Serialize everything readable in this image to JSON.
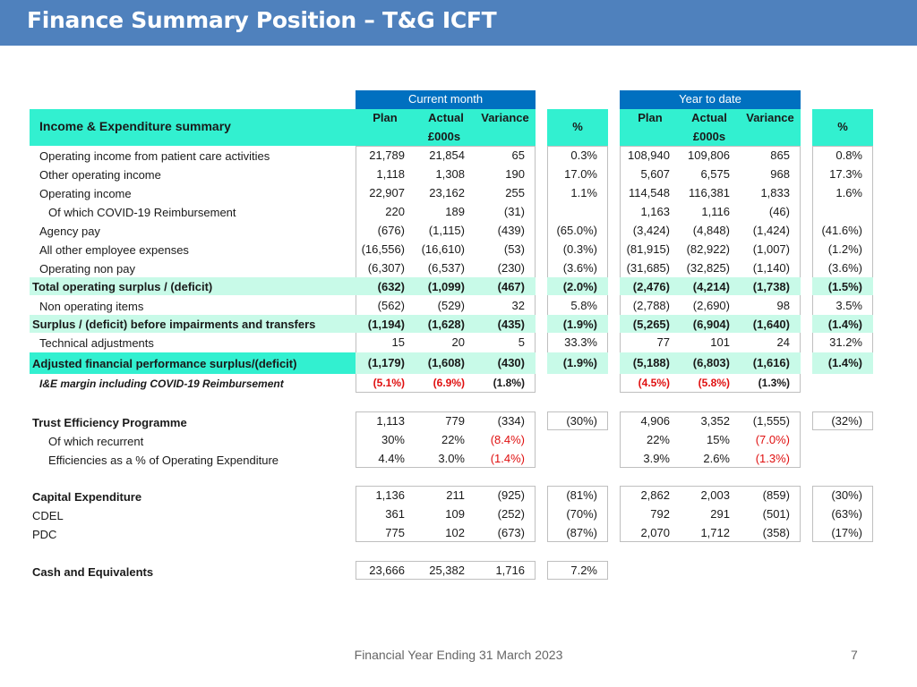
{
  "slide": {
    "title": "Finance Summary Position – T&G ICFT",
    "footer": "Financial Year Ending 31 March 2023",
    "page_number": "7"
  },
  "headers": {
    "current_month": "Current month",
    "year_to_date": "Year to date",
    "plan": "Plan",
    "actual": "Actual",
    "variance": "Variance",
    "percent": "%",
    "units": "£000s",
    "ie_summary": "Income & Expenditure summary"
  },
  "ie_rows": [
    {
      "label": "Operating income from patient care activities",
      "cm": [
        "21,789",
        "21,854",
        "65"
      ],
      "cm_pct": "0.3%",
      "ytd": [
        "108,940",
        "109,806",
        "865"
      ],
      "ytd_pct": "0.8%"
    },
    {
      "label": "Other operating income",
      "cm": [
        "1,118",
        "1,308",
        "190"
      ],
      "cm_pct": "17.0%",
      "ytd": [
        "5,607",
        "6,575",
        "968"
      ],
      "ytd_pct": "17.3%"
    },
    {
      "label": "Operating income",
      "cm": [
        "22,907",
        "23,162",
        "255"
      ],
      "cm_pct": "1.1%",
      "ytd": [
        "114,548",
        "116,381",
        "1,833"
      ],
      "ytd_pct": "1.6%"
    },
    {
      "label": "Of which COVID-19 Reimbursement",
      "cm": [
        "220",
        "189",
        "(31)"
      ],
      "cm_pct": "",
      "ytd": [
        "1,163",
        "1,116",
        "(46)"
      ],
      "ytd_pct": ""
    },
    {
      "label": "Agency pay",
      "cm": [
        "(676)",
        "(1,115)",
        "(439)"
      ],
      "cm_pct": "(65.0%)",
      "ytd": [
        "(3,424)",
        "(4,848)",
        "(1,424)"
      ],
      "ytd_pct": "(41.6%)"
    },
    {
      "label": "All other employee expenses",
      "cm": [
        "(16,556)",
        "(16,610)",
        "(53)"
      ],
      "cm_pct": "(0.3%)",
      "ytd": [
        "(81,915)",
        "(82,922)",
        "(1,007)"
      ],
      "ytd_pct": "(1.2%)"
    },
    {
      "label": "Operating non pay",
      "cm": [
        "(6,307)",
        "(6,537)",
        "(230)"
      ],
      "cm_pct": "(3.6%)",
      "ytd": [
        "(31,685)",
        "(32,825)",
        "(1,140)"
      ],
      "ytd_pct": "(3.6%)"
    },
    {
      "label": "Total operating surplus / (deficit)",
      "cm": [
        "(632)",
        "(1,099)",
        "(467)"
      ],
      "cm_pct": "(2.0%)",
      "ytd": [
        "(2,476)",
        "(4,214)",
        "(1,738)"
      ],
      "ytd_pct": "(1.5%)"
    },
    {
      "label": "Non operating items",
      "cm": [
        "(562)",
        "(529)",
        "32"
      ],
      "cm_pct": "5.8%",
      "ytd": [
        "(2,788)",
        "(2,690)",
        "98"
      ],
      "ytd_pct": "3.5%"
    },
    {
      "label": "Surplus / (deficit) before impairments and transfers",
      "cm": [
        "(1,194)",
        "(1,628)",
        "(435)"
      ],
      "cm_pct": "(1.9%)",
      "ytd": [
        "(5,265)",
        "(6,904)",
        "(1,640)"
      ],
      "ytd_pct": "(1.4%)"
    },
    {
      "label": "Technical adjustments",
      "cm": [
        "15",
        "20",
        "5"
      ],
      "cm_pct": "33.3%",
      "ytd": [
        "77",
        "101",
        "24"
      ],
      "ytd_pct": "31.2%"
    },
    {
      "label": "Adjusted financial performance surplus/(deficit)",
      "cm": [
        "(1,179)",
        "(1,608)",
        "(430)"
      ],
      "cm_pct": "(1.9%)",
      "ytd": [
        "(5,188)",
        "(6,803)",
        "(1,616)"
      ],
      "ytd_pct": "(1.4%)"
    },
    {
      "label": "I&E margin including COVID-19 Reimbursement",
      "cm": [
        "(5.1%)",
        "(6.9%)",
        "(1.8%)"
      ],
      "cm_pct": "",
      "ytd": [
        "(4.5%)",
        "(5.8%)",
        "(1.3%)"
      ],
      "ytd_pct": ""
    }
  ],
  "efficiency_rows": [
    {
      "label": "Trust Efficiency Programme",
      "cm": [
        "1,113",
        "779",
        "(334)"
      ],
      "cm_pct": "(30%)",
      "ytd": [
        "4,906",
        "3,352",
        "(1,555)"
      ],
      "ytd_pct": "(32%)"
    },
    {
      "label": "Of which recurrent",
      "cm": [
        "30%",
        "22%",
        "(8.4%)"
      ],
      "cm_pct": "",
      "ytd": [
        "22%",
        "15%",
        "(7.0%)"
      ],
      "ytd_pct": ""
    },
    {
      "label": "Efficiencies as a % of Operating Expenditure",
      "cm": [
        "4.4%",
        "3.0%",
        "(1.4%)"
      ],
      "cm_pct": "",
      "ytd": [
        "3.9%",
        "2.6%",
        "(1.3%)"
      ],
      "ytd_pct": ""
    }
  ],
  "capital_rows": [
    {
      "label": "Capital Expenditure",
      "cm": [
        "1,136",
        "211",
        "(925)"
      ],
      "cm_pct": "(81%)",
      "ytd": [
        "2,862",
        "2,003",
        "(859)"
      ],
      "ytd_pct": "(30%)"
    },
    {
      "label": "CDEL",
      "cm": [
        "361",
        "109",
        "(252)"
      ],
      "cm_pct": "(70%)",
      "ytd": [
        "792",
        "291",
        "(501)"
      ],
      "ytd_pct": "(63%)"
    },
    {
      "label": "PDC",
      "cm": [
        "775",
        "102",
        "(673)"
      ],
      "cm_pct": "(87%)",
      "ytd": [
        "2,070",
        "1,712",
        "(358)"
      ],
      "ytd_pct": "(17%)"
    }
  ],
  "cash_rows": [
    {
      "label": "Cash and Equivalents",
      "cm": [
        "23,666",
        "25,382",
        "1,716"
      ],
      "cm_pct": "7.2%"
    }
  ],
  "colors": {
    "header_blue": "#0070c0",
    "aqua": "#32f0d0",
    "light_green": "#c8fae8",
    "title_bar": "#4f81bd",
    "negative_red": "#e01010"
  }
}
